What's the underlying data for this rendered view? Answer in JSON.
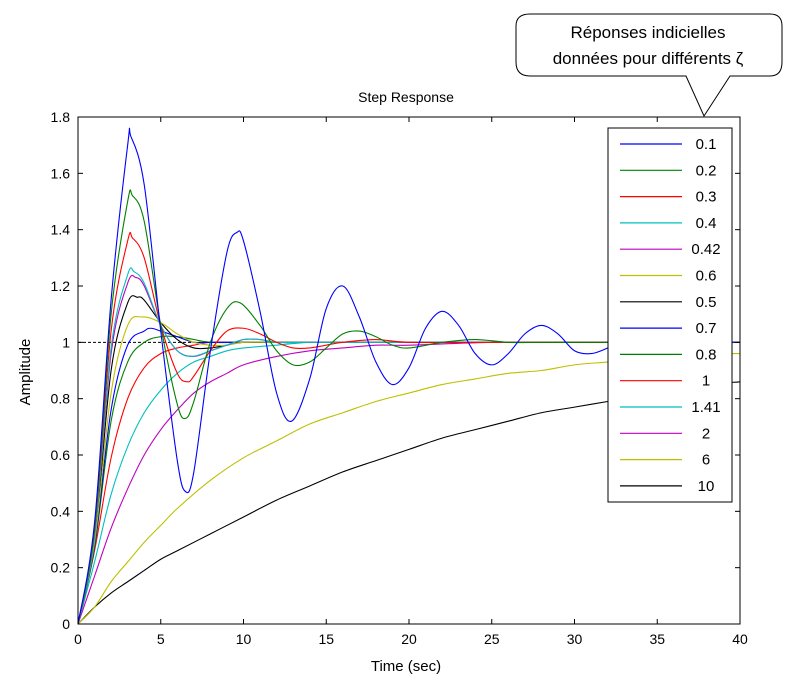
{
  "chart_data": {
    "type": "line",
    "title": "Step Response",
    "xlabel": "Time (sec)",
    "ylabel": "Amplitude",
    "xlim": [
      0,
      40
    ],
    "ylim": [
      0,
      1.8
    ],
    "x_ticks": [
      "0",
      "5",
      "10",
      "15",
      "20",
      "25",
      "30",
      "35",
      "40"
    ],
    "y_ticks": [
      "0",
      "0.2",
      "0.4",
      "0.6",
      "0.8",
      "1",
      "1.2",
      "1.4",
      "1.6",
      "1.8"
    ],
    "reference_line": {
      "y": 1,
      "style": "dashed"
    },
    "legend_position": "top-right",
    "callout": {
      "line1": "Réponses indicielles",
      "line2": "données pour différents ζ"
    },
    "series": [
      {
        "name": "0.1",
        "color": "#0000ff",
        "x": [
          0,
          1,
          2,
          3,
          3.2,
          4,
          5,
          6,
          6.5,
          7,
          8,
          9,
          9.6,
          10,
          11,
          12,
          12.9,
          14,
          15,
          16,
          17,
          18,
          19,
          20,
          21,
          22,
          23,
          24,
          25,
          26,
          27,
          28,
          29,
          30,
          31,
          32,
          33,
          34,
          35,
          36,
          37,
          38,
          39,
          40
        ],
        "y": [
          0,
          0.36,
          1.15,
          1.7,
          1.73,
          1.56,
          1.04,
          0.58,
          0.47,
          0.54,
          0.97,
          1.32,
          1.39,
          1.36,
          1.11,
          0.82,
          0.72,
          0.87,
          1.12,
          1.2,
          1.09,
          0.93,
          0.85,
          0.91,
          1.05,
          1.11,
          1.06,
          0.96,
          0.92,
          0.96,
          1.03,
          1.06,
          1.03,
          0.97,
          0.96,
          0.98,
          1.01,
          1.02,
          1.01,
          0.99,
          0.98,
          0.99,
          1.0,
          1.0
        ]
      },
      {
        "name": "0.2",
        "color": "#008000",
        "x": [
          0,
          1,
          2,
          3,
          3.3,
          4,
          5,
          6,
          6.5,
          7,
          8,
          9,
          9.8,
          11,
          12,
          13,
          14,
          15,
          16,
          17,
          18,
          19,
          20,
          22,
          24,
          26,
          28,
          30,
          35,
          40
        ],
        "y": [
          0,
          0.34,
          1.1,
          1.5,
          1.52,
          1.43,
          1.06,
          0.78,
          0.73,
          0.79,
          1.0,
          1.12,
          1.14,
          1.06,
          0.97,
          0.92,
          0.93,
          0.98,
          1.03,
          1.04,
          1.02,
          0.99,
          0.98,
          1.0,
          1.01,
          1.0,
          1.0,
          1.0,
          1.0,
          1.0
        ]
      },
      {
        "name": "0.3",
        "color": "#ff0000",
        "x": [
          0,
          1,
          2,
          3,
          3.3,
          4,
          5,
          6,
          6.6,
          7,
          8,
          9,
          10,
          11,
          12,
          13,
          14,
          15,
          16,
          18,
          20,
          25,
          30,
          35,
          40
        ],
        "y": [
          0,
          0.33,
          1.04,
          1.36,
          1.37,
          1.3,
          1.06,
          0.89,
          0.86,
          0.88,
          0.97,
          1.04,
          1.05,
          1.03,
          1.0,
          0.98,
          0.98,
          0.99,
          1.0,
          1.01,
          1.0,
          1.0,
          1.0,
          1.0,
          1.0
        ]
      },
      {
        "name": "0.4",
        "color": "#00bfbf",
        "x": [
          0,
          1,
          2,
          3,
          3.4,
          4,
          5,
          6,
          6.9,
          8,
          9,
          10,
          11,
          12,
          14,
          16,
          20,
          25,
          30,
          35,
          40
        ],
        "y": [
          0,
          0.31,
          0.98,
          1.24,
          1.25,
          1.21,
          1.06,
          0.97,
          0.95,
          0.97,
          0.99,
          1.01,
          1.01,
          1.0,
          1.0,
          1.0,
          1.0,
          1.0,
          1.0,
          1.0,
          1.0
        ]
      },
      {
        "name": "0.42",
        "color": "#bf00bf",
        "x": [
          0,
          1,
          2,
          3,
          3.5,
          4,
          5,
          6,
          7,
          8,
          9,
          10,
          11,
          12,
          14,
          16,
          20,
          25,
          30,
          35,
          40
        ],
        "y": [
          0,
          0.31,
          0.96,
          1.21,
          1.23,
          1.2,
          1.06,
          0.97,
          0.95,
          0.97,
          0.99,
          1.01,
          1.01,
          1.0,
          1.0,
          1.0,
          1.0,
          1.0,
          1.0,
          1.0,
          1.0
        ]
      },
      {
        "name": "0.6",
        "color": "#bfbf00",
        "x": [
          0,
          1,
          2,
          3,
          3.9,
          5,
          6,
          7,
          8,
          9,
          10,
          12,
          14,
          16,
          20,
          25,
          30,
          35,
          40
        ],
        "y": [
          0,
          0.29,
          0.82,
          1.06,
          1.09,
          1.07,
          1.03,
          1.0,
          0.99,
          0.99,
          1.0,
          1.0,
          1.0,
          1.0,
          1.0,
          1.0,
          1.0,
          1.0,
          1.0
        ]
      },
      {
        "name": "0.5",
        "color": "#000000",
        "x": [
          0,
          1,
          2,
          3,
          3.6,
          4,
          5,
          6,
          7,
          8,
          9,
          10,
          12,
          14,
          16,
          20,
          25,
          30,
          35,
          40
        ],
        "y": [
          0,
          0.3,
          0.9,
          1.14,
          1.16,
          1.15,
          1.07,
          1.01,
          0.98,
          0.98,
          0.99,
          1.0,
          1.0,
          1.0,
          1.0,
          1.0,
          1.0,
          1.0,
          1.0,
          1.0
        ]
      },
      {
        "name": "0.7",
        "color": "#0000ff",
        "x": [
          0,
          1,
          2,
          3,
          4,
          4.4,
          5,
          6,
          7,
          8,
          10,
          12,
          15,
          20,
          25,
          30,
          35,
          40
        ],
        "y": [
          0,
          0.28,
          0.76,
          0.99,
          1.04,
          1.05,
          1.04,
          1.02,
          1.0,
          1.0,
          1.0,
          1.0,
          1.0,
          1.0,
          1.0,
          1.0,
          1.0,
          1.0
        ]
      },
      {
        "name": "0.8",
        "color": "#008000",
        "x": [
          0,
          1,
          2,
          3,
          4,
          5,
          6,
          7,
          8,
          10,
          12,
          15,
          20,
          25,
          30,
          35,
          40
        ],
        "y": [
          0,
          0.27,
          0.72,
          0.93,
          1.0,
          1.02,
          1.02,
          1.01,
          1.0,
          1.0,
          1.0,
          1.0,
          1.0,
          1.0,
          1.0,
          1.0,
          1.0
        ]
      },
      {
        "name": "1",
        "color": "#ff0000",
        "x": [
          0,
          1,
          2,
          3,
          4,
          5,
          6,
          7,
          8,
          10,
          12,
          15,
          20,
          25,
          30,
          35,
          40
        ],
        "y": [
          0,
          0.26,
          0.59,
          0.8,
          0.91,
          0.96,
          0.98,
          0.99,
          1.0,
          1.0,
          1.0,
          1.0,
          1.0,
          1.0,
          1.0,
          1.0,
          1.0
        ]
      },
      {
        "name": "1.41",
        "color": "#00bfbf",
        "x": [
          0,
          1,
          2,
          3,
          4,
          5,
          6,
          7,
          8,
          9,
          10,
          12,
          14,
          16,
          20,
          25,
          30,
          35,
          40
        ],
        "y": [
          0,
          0.22,
          0.46,
          0.63,
          0.75,
          0.83,
          0.89,
          0.93,
          0.95,
          0.97,
          0.98,
          0.99,
          1.0,
          1.0,
          1.0,
          1.0,
          1.0,
          1.0,
          1.0
        ]
      },
      {
        "name": "2",
        "color": "#bf00bf",
        "x": [
          0,
          1,
          2,
          3,
          4,
          5,
          6,
          7,
          8,
          9,
          10,
          12,
          14,
          16,
          18,
          20,
          25,
          30,
          35,
          40
        ],
        "y": [
          0,
          0.17,
          0.34,
          0.48,
          0.6,
          0.69,
          0.76,
          0.82,
          0.86,
          0.89,
          0.92,
          0.95,
          0.97,
          0.98,
          0.99,
          0.99,
          1.0,
          1.0,
          1.0,
          1.0
        ]
      },
      {
        "name": "6",
        "color": "#bfbf00",
        "x": [
          0,
          1,
          2,
          3,
          4,
          5,
          6,
          8,
          10,
          12,
          14,
          16,
          18,
          20,
          22,
          24,
          26,
          28,
          30,
          32,
          34,
          36,
          38,
          40
        ],
        "y": [
          0,
          0.06,
          0.15,
          0.22,
          0.29,
          0.35,
          0.41,
          0.51,
          0.59,
          0.65,
          0.71,
          0.75,
          0.79,
          0.82,
          0.85,
          0.87,
          0.89,
          0.9,
          0.92,
          0.93,
          0.94,
          0.95,
          0.96,
          0.96
        ]
      },
      {
        "name": "10",
        "color": "#000000",
        "x": [
          0,
          1,
          2,
          3,
          4,
          5,
          6,
          8,
          10,
          12,
          14,
          16,
          18,
          20,
          22,
          24,
          26,
          28,
          30,
          32,
          34,
          36,
          38,
          40
        ],
        "y": [
          0,
          0.06,
          0.11,
          0.15,
          0.19,
          0.23,
          0.26,
          0.32,
          0.38,
          0.44,
          0.49,
          0.54,
          0.58,
          0.62,
          0.66,
          0.69,
          0.72,
          0.75,
          0.77,
          0.79,
          0.81,
          0.83,
          0.85,
          0.86
        ]
      }
    ]
  }
}
